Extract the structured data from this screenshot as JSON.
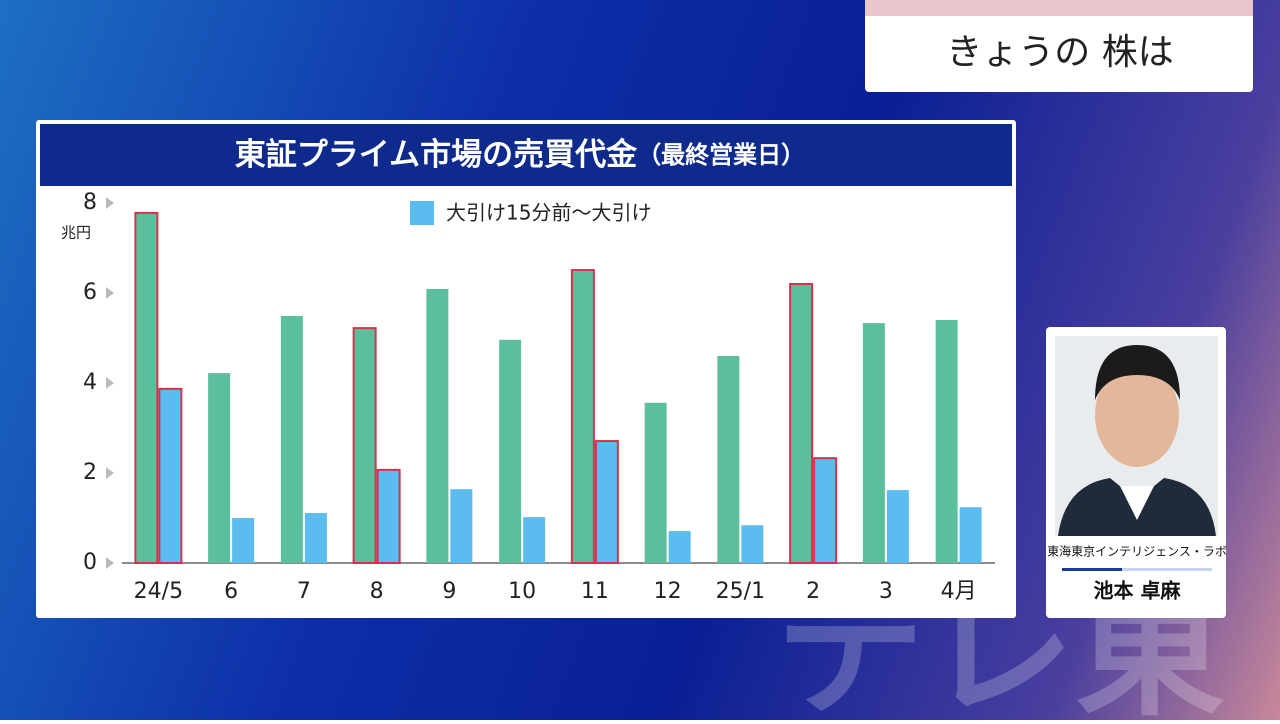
{
  "header": {
    "label": "きょうの 株は"
  },
  "chart_data": {
    "type": "bar",
    "title": "東証プライム市場の売買代金",
    "subtitle": "（最終営業日）",
    "y_label": "兆円",
    "categories": [
      "24/5",
      "6",
      "7",
      "8",
      "9",
      "10",
      "11",
      "12",
      "25/1",
      "2",
      "3",
      "4月"
    ],
    "series": [
      {
        "color": "#5cbf9b",
        "values": [
          7.78,
          4.22,
          5.49,
          5.22,
          6.09,
          4.96,
          6.51,
          3.56,
          4.6,
          6.2,
          5.33,
          5.4
        ]
      },
      {
        "name": "大引け15分前～大引け",
        "color": "#5bbcf0",
        "values": [
          3.87,
          1.0,
          1.11,
          2.07,
          1.64,
          1.02,
          2.71,
          0.71,
          0.84,
          2.33,
          1.62,
          1.24
        ]
      }
    ],
    "outlined": [
      0,
      3,
      6,
      9
    ],
    "outline_color": "#d8304f",
    "ylim": [
      0,
      8
    ],
    "yticks": [
      0,
      2,
      4,
      6,
      8
    ],
    "grid": false
  },
  "presenter": {
    "company": "東海東京インテリジェンス・ラボ",
    "name": "池本 卓麻"
  },
  "watermark": "テレ東"
}
